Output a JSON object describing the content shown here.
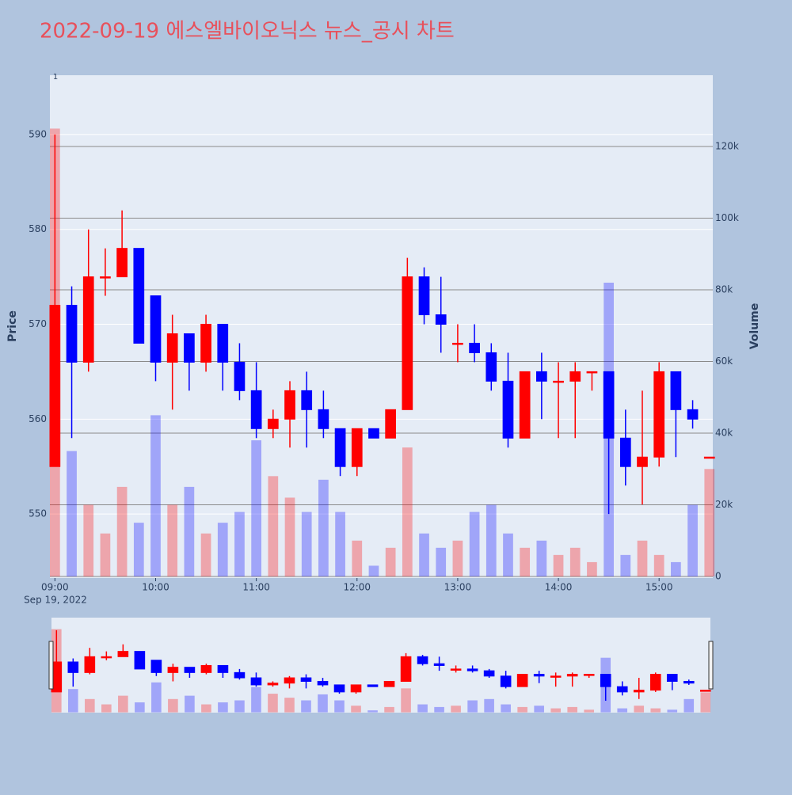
{
  "chart_data": {
    "type": "candlestick",
    "title": "2022-09-19 에스엘바이오닉스 뉴스_공시 차트",
    "annotation": "1",
    "x_date_label": "Sep 19, 2022",
    "y_title": "Price",
    "y2_title": "Volume",
    "increasing_color": "#ff0000",
    "decreasing_color": "#0000ff",
    "grid": true,
    "y2grid": true,
    "rangeslider": true,
    "xlim": [
      "2022-09-19 08:57",
      "2022-09-19 15:32"
    ],
    "xticks": [
      {
        "value": "2022-09-19 09:00",
        "label": "09:00"
      },
      {
        "value": "2022-09-19 10:00",
        "label": "10:00"
      },
      {
        "value": "2022-09-19 11:00",
        "label": "11:00"
      },
      {
        "value": "2022-09-19 12:00",
        "label": "12:00"
      },
      {
        "value": "2022-09-19 13:00",
        "label": "13:00"
      },
      {
        "value": "2022-09-19 14:00",
        "label": "14:00"
      },
      {
        "value": "2022-09-19 15:00",
        "label": "15:00"
      }
    ],
    "ylim": [
      543.25,
      596.25
    ],
    "yticks": [
      550,
      560,
      570,
      580,
      590
    ],
    "y2lim": [
      -440,
      139900
    ],
    "y2ticks": [
      0,
      {
        "value": 20000,
        "label": "20k"
      },
      {
        "value": 40000,
        "label": "40k"
      },
      {
        "value": 60000,
        "label": "60k"
      },
      {
        "value": 80000,
        "label": "80k"
      },
      {
        "value": 100000,
        "label": "100k"
      },
      {
        "value": 120000,
        "label": "120k"
      }
    ],
    "x": [
      "2022-09-19 09:00",
      "2022-09-19 09:10",
      "2022-09-19 09:20",
      "2022-09-19 09:30",
      "2022-09-19 09:40",
      "2022-09-19 09:50",
      "2022-09-19 10:00",
      "2022-09-19 10:10",
      "2022-09-19 10:20",
      "2022-09-19 10:30",
      "2022-09-19 10:40",
      "2022-09-19 10:50",
      "2022-09-19 11:00",
      "2022-09-19 11:10",
      "2022-09-19 11:20",
      "2022-09-19 11:30",
      "2022-09-19 11:40",
      "2022-09-19 11:50",
      "2022-09-19 12:00",
      "2022-09-19 12:10",
      "2022-09-19 12:20",
      "2022-09-19 12:30",
      "2022-09-19 12:40",
      "2022-09-19 12:50",
      "2022-09-19 13:00",
      "2022-09-19 13:10",
      "2022-09-19 13:20",
      "2022-09-19 13:30",
      "2022-09-19 13:40",
      "2022-09-19 13:50",
      "2022-09-19 14:00",
      "2022-09-19 14:10",
      "2022-09-19 14:20",
      "2022-09-19 14:30",
      "2022-09-19 14:40",
      "2022-09-19 14:50",
      "2022-09-19 15:00",
      "2022-09-19 15:10",
      "2022-09-19 15:20",
      "2022-09-19 15:30"
    ],
    "open": [
      555,
      572,
      566,
      575,
      575,
      578,
      573,
      566,
      569,
      566,
      570,
      566,
      563,
      559,
      560,
      563,
      561,
      559,
      555,
      559,
      558,
      561,
      575,
      571,
      568,
      568,
      567,
      564,
      558,
      565,
      564,
      564,
      565,
      565,
      558,
      555,
      556,
      565,
      561,
      556
    ],
    "high": [
      590,
      574,
      580,
      578,
      582,
      578,
      573,
      571,
      569,
      571,
      570,
      568,
      566,
      561,
      564,
      565,
      563,
      559,
      559,
      559,
      561,
      577,
      576,
      575,
      570,
      570,
      568,
      567,
      565,
      567,
      566,
      566,
      565,
      565,
      561,
      563,
      566,
      565,
      562,
      556
    ],
    "low": [
      555,
      558,
      565,
      573,
      575,
      568,
      564,
      561,
      563,
      565,
      563,
      562,
      558,
      558,
      557,
      557,
      558,
      554,
      554,
      558,
      558,
      561,
      570,
      567,
      566,
      566,
      563,
      557,
      558,
      560,
      558,
      558,
      563,
      550,
      553,
      551,
      555,
      556,
      559,
      556
    ],
    "close": [
      572,
      566,
      575,
      575,
      578,
      568,
      566,
      569,
      566,
      570,
      566,
      563,
      559,
      560,
      563,
      561,
      559,
      555,
      559,
      558,
      561,
      575,
      571,
      570,
      568,
      567,
      564,
      558,
      565,
      564,
      564,
      565,
      565,
      558,
      555,
      556,
      565,
      561,
      560,
      556
    ],
    "volume": [
      125000,
      35000,
      20000,
      12000,
      25000,
      15000,
      45000,
      20000,
      25000,
      12000,
      15000,
      18000,
      38000,
      28000,
      22000,
      18000,
      27000,
      18000,
      10000,
      3000,
      8000,
      36000,
      12000,
      8000,
      10000,
      18000,
      20000,
      12000,
      8000,
      10000,
      6000,
      8000,
      4000,
      82000,
      6000,
      10000,
      6000,
      4000,
      20000,
      30000
    ]
  }
}
